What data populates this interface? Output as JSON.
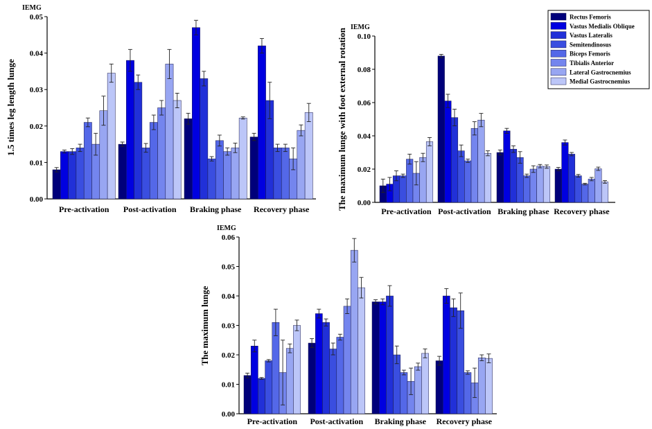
{
  "chart_data": [
    {
      "type": "bar",
      "title": "",
      "ylabel": "1.5 times leg length lunge",
      "unit_label": "IEMG",
      "ylim": [
        0,
        0.05
      ],
      "yticks": [
        "0.00",
        "0.01",
        "0.02",
        "0.03",
        "0.04",
        "0.05"
      ],
      "categories": [
        "Pre-activation",
        "Post-activation",
        "Braking phase",
        "Recovery phase"
      ],
      "series": [
        {
          "name": "Rectus Femoris",
          "values": [
            0.008,
            0.015,
            0.022,
            0.017
          ],
          "errors": [
            0.0006,
            0.0006,
            0.0015,
            0.001
          ]
        },
        {
          "name": "Vastus Medialis Oblique",
          "values": [
            0.013,
            0.038,
            0.047,
            0.042
          ],
          "errors": [
            0.0004,
            0.003,
            0.002,
            0.002
          ]
        },
        {
          "name": "Vastus Lateralis",
          "values": [
            0.013,
            0.032,
            0.033,
            0.027
          ],
          "errors": [
            0.0008,
            0.002,
            0.002,
            0.005
          ]
        },
        {
          "name": "Semitendinosus",
          "values": [
            0.014,
            0.014,
            0.011,
            0.014
          ],
          "errors": [
            0.001,
            0.0012,
            0.0006,
            0.001
          ]
        },
        {
          "name": "Biceps Femoris",
          "values": [
            0.021,
            0.021,
            0.016,
            0.014
          ],
          "errors": [
            0.0012,
            0.002,
            0.0015,
            0.001
          ]
        },
        {
          "name": "Tibialis Anterior",
          "values": [
            0.015,
            0.025,
            0.013,
            0.011
          ],
          "errors": [
            0.003,
            0.002,
            0.001,
            0.003
          ]
        },
        {
          "name": "Lateral Gastrocnemius",
          "values": [
            0.0242,
            0.037,
            0.014,
            0.0188
          ],
          "errors": [
            0.004,
            0.004,
            0.0013,
            0.0015
          ]
        },
        {
          "name": "Medial Gastrocnemius",
          "values": [
            0.0345,
            0.027,
            0.0222,
            0.0237
          ],
          "errors": [
            0.0025,
            0.002,
            0.0003,
            0.0025
          ]
        }
      ]
    },
    {
      "type": "bar",
      "title": "",
      "ylabel": "The maximum lunge with foot external rotation",
      "unit_label": "IEMG",
      "ylim": [
        0,
        0.1
      ],
      "yticks": [
        "0.00",
        "0.02",
        "0.04",
        "0.06",
        "0.08",
        "0.10"
      ],
      "categories": [
        "Pre-activation",
        "Post-activation",
        "Braking phase",
        "Recovery phase"
      ],
      "series": [
        {
          "name": "Rectus Femoris",
          "values": [
            0.01,
            0.088,
            0.03,
            0.02
          ],
          "errors": [
            0.004,
            0.001,
            0.0015,
            0.001
          ]
        },
        {
          "name": "Vastus Medialis Oblique",
          "values": [
            0.011,
            0.061,
            0.043,
            0.036
          ],
          "errors": [
            0.004,
            0.004,
            0.0015,
            0.0015
          ]
        },
        {
          "name": "Vastus Lateralis",
          "values": [
            0.016,
            0.051,
            0.032,
            0.029
          ],
          "errors": [
            0.003,
            0.005,
            0.002,
            0.001
          ]
        },
        {
          "name": "Semitendinosus",
          "values": [
            0.016,
            0.031,
            0.027,
            0.016
          ],
          "errors": [
            0.001,
            0.0035,
            0.0035,
            0.0008
          ]
        },
        {
          "name": "Biceps Femoris",
          "values": [
            0.026,
            0.025,
            0.016,
            0.011
          ],
          "errors": [
            0.003,
            0.001,
            0.001,
            0.0005
          ]
        },
        {
          "name": "Tibialis Anterior",
          "values": [
            0.0175,
            0.0445,
            0.02,
            0.014
          ],
          "errors": [
            0.007,
            0.004,
            0.002,
            0.001
          ]
        },
        {
          "name": "Lateral Gastrocnemius",
          "values": [
            0.027,
            0.0495,
            0.0218,
            0.0202
          ],
          "errors": [
            0.0025,
            0.004,
            0.001,
            0.001
          ]
        },
        {
          "name": "Medial Gastrocnemius",
          "values": [
            0.0365,
            0.0295,
            0.0215,
            0.0123
          ],
          "errors": [
            0.0025,
            0.0015,
            0.001,
            0.0008
          ]
        }
      ]
    },
    {
      "type": "bar",
      "title": "",
      "ylabel": "The maximum lunge",
      "unit_label": "IEMG",
      "ylim": [
        0,
        0.06
      ],
      "yticks": [
        "0.00",
        "0.01",
        "0.02",
        "0.03",
        "0.04",
        "0.05",
        "0.06"
      ],
      "categories": [
        "Pre-activation",
        "Post-activation",
        "Braking phase",
        "Recovery phase"
      ],
      "series": [
        {
          "name": "Rectus Femoris",
          "values": [
            0.013,
            0.024,
            0.038,
            0.018
          ],
          "errors": [
            0.0008,
            0.0015,
            0.0007,
            0.0015
          ]
        },
        {
          "name": "Vastus Medialis Oblique",
          "values": [
            0.023,
            0.034,
            0.038,
            0.04
          ],
          "errors": [
            0.002,
            0.0015,
            0.001,
            0.0025
          ]
        },
        {
          "name": "Vastus Lateralis",
          "values": [
            0.012,
            0.031,
            0.04,
            0.036
          ],
          "errors": [
            0.0003,
            0.0012,
            0.0035,
            0.003
          ]
        },
        {
          "name": "Semitendinosus",
          "values": [
            0.018,
            0.022,
            0.02,
            0.035
          ],
          "errors": [
            0.0004,
            0.002,
            0.003,
            0.006
          ]
        },
        {
          "name": "Biceps Femoris",
          "values": [
            0.031,
            0.026,
            0.014,
            0.014
          ],
          "errors": [
            0.0045,
            0.001,
            0.0008,
            0.0006
          ]
        },
        {
          "name": "Tibialis Anterior",
          "values": [
            0.014,
            0.0365,
            0.011,
            0.0105
          ],
          "errors": [
            0.011,
            0.0025,
            0.0045,
            0.005
          ]
        },
        {
          "name": "Lateral Gastrocnemius",
          "values": [
            0.0222,
            0.0555,
            0.016,
            0.019
          ],
          "errors": [
            0.0015,
            0.004,
            0.0012,
            0.001
          ]
        },
        {
          "name": "Medial Gastrocnemius",
          "values": [
            0.03,
            0.0428,
            0.0205,
            0.0188
          ],
          "errors": [
            0.0018,
            0.0035,
            0.0015,
            0.0015
          ]
        }
      ]
    }
  ],
  "legend": {
    "placement": "top-right",
    "items": [
      {
        "label": "Rectus Femoris",
        "color": "#00007a"
      },
      {
        "label": "Vastus Medialis Oblique",
        "color": "#0000e0"
      },
      {
        "label": "Vastus Lateralis",
        "color": "#2130d8"
      },
      {
        "label": "Semitendinosus",
        "color": "#3a4ee0"
      },
      {
        "label": "Biceps Femoris",
        "color": "#5468e8"
      },
      {
        "label": "Tibialis Anterior",
        "color": "#7485ee"
      },
      {
        "label": "Lateral Gastrocnemius",
        "color": "#98a6f2"
      },
      {
        "label": "Medial Gastrocnemius",
        "color": "#bcc6f8"
      }
    ]
  }
}
